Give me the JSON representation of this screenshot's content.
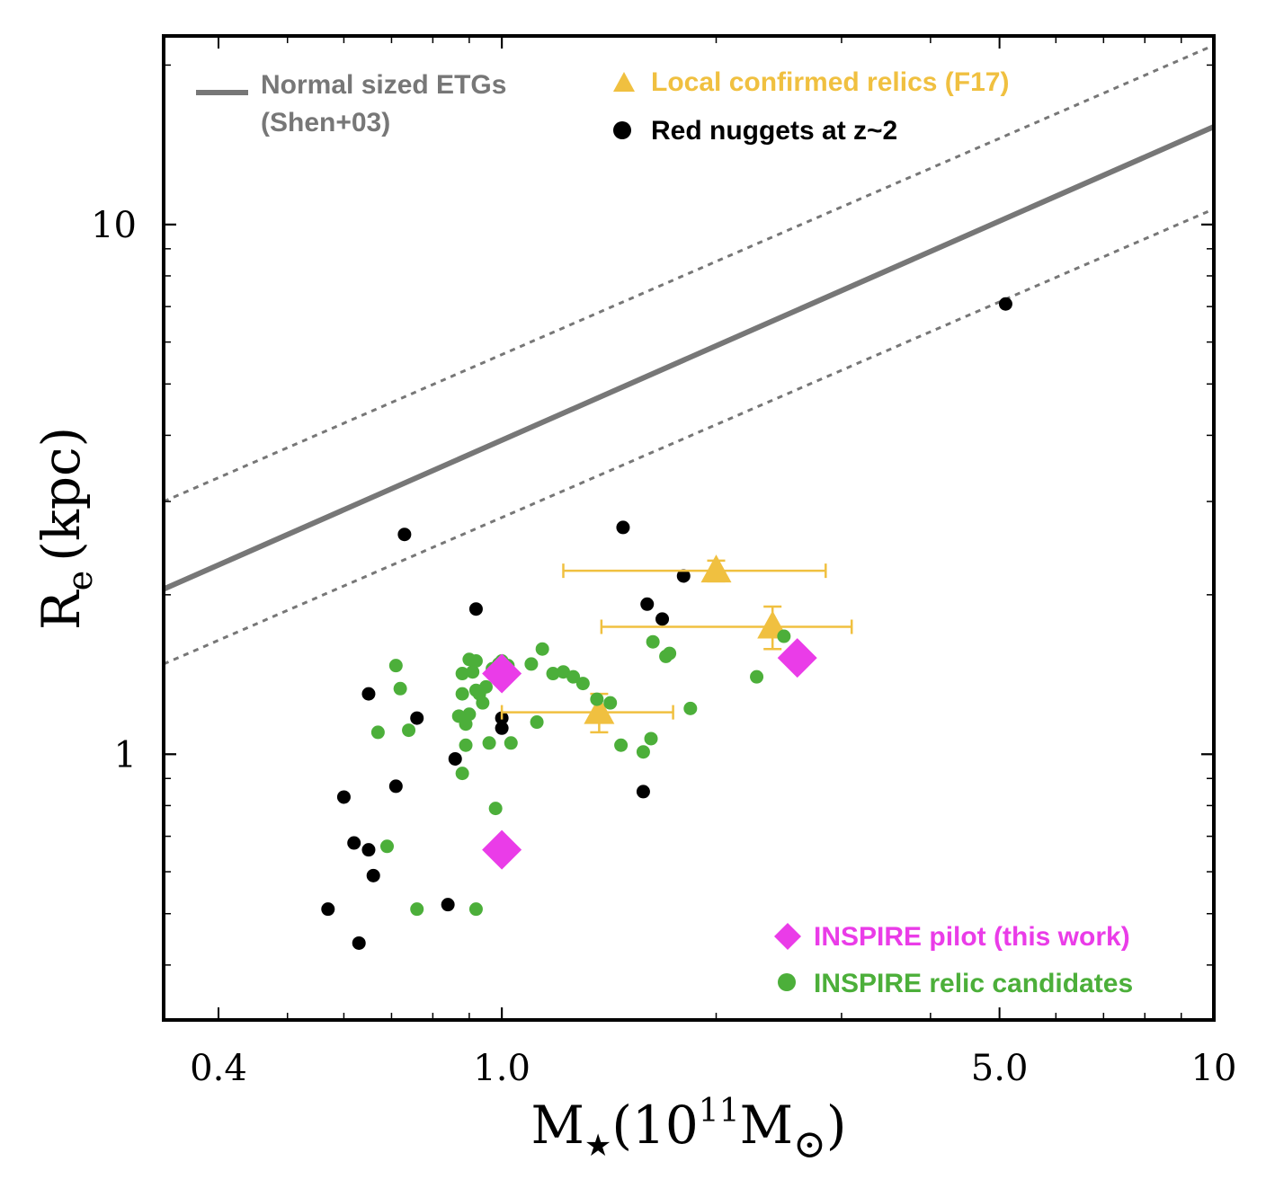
{
  "chart_data": {
    "type": "scatter",
    "title": "",
    "xscale": "log",
    "yscale": "log",
    "xlim": [
      0.335,
      10
    ],
    "ylim": [
      0.315,
      22.7
    ],
    "xlabel": {
      "main": "M",
      "sub": "★",
      "paren_open": "(10",
      "sup": "11",
      "unit": "M",
      "unit_sub": "⊙",
      "paren_close": ")"
    },
    "ylabel": {
      "main": "R",
      "sub": "e",
      "unit": "(kpc)"
    },
    "xticks": [
      {
        "value": 0.4,
        "label": "0.4"
      },
      {
        "value": 1.0,
        "label": "1.0"
      },
      {
        "value": 5.0,
        "label": "5.0"
      },
      {
        "value": 10,
        "label": "10"
      }
    ],
    "yticks": [
      {
        "value": 1,
        "label": "1"
      },
      {
        "value": 10,
        "label": "10"
      }
    ],
    "colors": {
      "normal_line": "#777777",
      "relics": "#f0c040",
      "nuggets": "#000000",
      "pilot": "#ea3ce8",
      "candidates": "#4caf3a"
    },
    "shen_relation": {
      "name": "Normal sized ETGs (Shen+03)",
      "line": [
        [
          0.335,
          2.05
        ],
        [
          10,
          15.3
        ]
      ],
      "upper_scatter": [
        [
          0.335,
          3.0
        ],
        [
          10,
          21.8
        ]
      ],
      "lower_scatter": [
        [
          0.335,
          1.48
        ],
        [
          10,
          10.7
        ]
      ]
    },
    "legend": {
      "normal": [
        "Normal sized ETGs",
        "(Shen+03)"
      ],
      "relics": "Local confirmed relics (F17)",
      "nuggets": "Red nuggets at z~2",
      "pilot": "INSPIRE pilot (this work)",
      "candidates": "INSPIRE relic candidates"
    },
    "series": [
      {
        "name": "Red nuggets at z~2",
        "marker": "circle",
        "points": [
          [
            5.1,
            7.08
          ],
          [
            0.73,
            2.6
          ],
          [
            1.48,
            2.68
          ],
          [
            1.8,
            2.17
          ],
          [
            1.6,
            1.92
          ],
          [
            1.68,
            1.8
          ],
          [
            0.92,
            1.88
          ],
          [
            0.65,
            1.3
          ],
          [
            0.76,
            1.17
          ],
          [
            1.0,
            1.17
          ],
          [
            1.0,
            1.12
          ],
          [
            0.86,
            0.98
          ],
          [
            0.71,
            0.87
          ],
          [
            0.6,
            0.83
          ],
          [
            1.58,
            0.85
          ],
          [
            0.62,
            0.68
          ],
          [
            0.65,
            0.66
          ],
          [
            0.66,
            0.59
          ],
          [
            0.57,
            0.51
          ],
          [
            0.84,
            0.52
          ],
          [
            0.63,
            0.44
          ]
        ]
      },
      {
        "name": "Local confirmed relics (F17)",
        "marker": "triangle",
        "points": [
          {
            "x": 2.0,
            "y": 2.22,
            "xerr": [
              1.22,
              2.85
            ],
            "yerr": [
              2.12,
              2.32
            ]
          },
          {
            "x": 2.4,
            "y": 1.74,
            "xerr": [
              1.38,
              3.1
            ],
            "yerr": [
              1.58,
              1.9
            ]
          },
          {
            "x": 1.37,
            "y": 1.2,
            "xerr": [
              1.0,
              1.74
            ],
            "yerr": [
              1.1,
              1.3
            ]
          }
        ]
      },
      {
        "name": "INSPIRE pilot (this work)",
        "marker": "diamond",
        "points": [
          [
            1.0,
            1.42
          ],
          [
            2.6,
            1.52
          ],
          [
            1.0,
            0.66
          ]
        ]
      },
      {
        "name": "INSPIRE relic candidates",
        "marker": "circle",
        "points": [
          [
            0.71,
            1.47
          ],
          [
            0.72,
            1.33
          ],
          [
            0.67,
            1.1
          ],
          [
            0.74,
            1.11
          ],
          [
            0.88,
            1.42
          ],
          [
            0.9,
            1.51
          ],
          [
            0.92,
            1.5
          ],
          [
            0.91,
            1.43
          ],
          [
            0.92,
            1.32
          ],
          [
            0.93,
            1.3
          ],
          [
            0.94,
            1.25
          ],
          [
            0.95,
            1.34
          ],
          [
            0.97,
            1.45
          ],
          [
            0.99,
            1.48
          ],
          [
            1.0,
            1.5
          ],
          [
            1.02,
            1.47
          ],
          [
            1.1,
            1.48
          ],
          [
            1.14,
            1.58
          ],
          [
            1.18,
            1.42
          ],
          [
            1.22,
            1.43
          ],
          [
            1.26,
            1.4
          ],
          [
            1.3,
            1.36
          ],
          [
            1.36,
            1.27
          ],
          [
            1.42,
            1.25
          ],
          [
            1.12,
            1.15
          ],
          [
            1.03,
            1.05
          ],
          [
            0.96,
            1.05
          ],
          [
            0.89,
            1.04
          ],
          [
            0.89,
            1.14
          ],
          [
            0.9,
            1.19
          ],
          [
            0.88,
            1.3
          ],
          [
            0.87,
            1.18
          ],
          [
            0.88,
            0.92
          ],
          [
            0.98,
            0.79
          ],
          [
            0.69,
            0.67
          ],
          [
            0.76,
            0.51
          ],
          [
            0.92,
            0.51
          ],
          [
            1.47,
            1.04
          ],
          [
            1.58,
            1.01
          ],
          [
            1.62,
            1.07
          ],
          [
            1.7,
            1.53
          ],
          [
            1.72,
            1.55
          ],
          [
            1.63,
            1.63
          ],
          [
            1.84,
            1.22
          ],
          [
            2.28,
            1.4
          ],
          [
            2.49,
            1.67
          ]
        ]
      }
    ]
  }
}
